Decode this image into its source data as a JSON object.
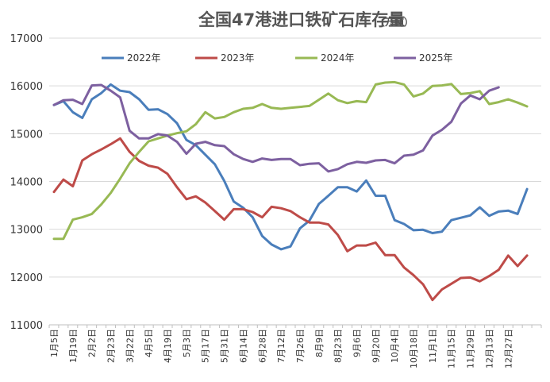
{
  "chart_data": {
    "type": "line",
    "title": "全国47港进口铁矿石库存量",
    "unit_label": "（万吨）",
    "ylim": [
      11000,
      17000
    ],
    "yticks": [
      11000,
      12000,
      13000,
      14000,
      15000,
      16000,
      17000
    ],
    "x_tick_labels": [
      "1月5日",
      "1月19日",
      "2月2日",
      "2月23日",
      "3月22日",
      "4月5日",
      "4月19日",
      "5月3日",
      "5月17日",
      "5月31日",
      "6月14日",
      "6月28日",
      "7月12日",
      "7月26日",
      "8月9日",
      "8月23日",
      "9月6日",
      "9月20日",
      "10月4日",
      "10月18日",
      "11月1日",
      "11月15日",
      "11月29日",
      "12月13日",
      "12月27日"
    ],
    "n_weeks": 52,
    "legend_position": "top",
    "series": [
      {
        "name": "2022年",
        "color": "#4a7ebb",
        "values": [
          15600,
          15680,
          15450,
          15330,
          15720,
          15850,
          16030,
          15900,
          15870,
          15720,
          15500,
          15510,
          15410,
          15220,
          14870,
          14760,
          14560,
          14360,
          14010,
          13580,
          13450,
          13250,
          12860,
          12680,
          12580,
          12640,
          13020,
          13180,
          13530,
          13700,
          13880,
          13880,
          13790,
          14020,
          13700,
          13700,
          13190,
          13110,
          12980,
          12990,
          12920,
          12950,
          13190,
          13240,
          13290,
          13460,
          13280,
          13370,
          13390,
          13320,
          13840
        ]
      },
      {
        "name": "2023年",
        "color": "#be4b48",
        "values": [
          13780,
          14040,
          13900,
          14440,
          14570,
          14670,
          14780,
          14900,
          14620,
          14430,
          14330,
          14290,
          14160,
          13880,
          13630,
          13690,
          13560,
          13380,
          13200,
          13420,
          13420,
          13360,
          13250,
          13470,
          13440,
          13380,
          13250,
          13140,
          13140,
          13100,
          12880,
          12540,
          12660,
          12660,
          12720,
          12460,
          12460,
          12200,
          12040,
          11850,
          11520,
          11740,
          11860,
          11980,
          11990,
          11910,
          12020,
          12150,
          12450,
          12230,
          12450
        ]
      },
      {
        "name": "2024年",
        "color": "#98b954",
        "values": [
          12800,
          12800,
          13200,
          13250,
          13320,
          13520,
          13760,
          14060,
          14380,
          14620,
          14840,
          14900,
          14960,
          15010,
          15050,
          15200,
          15450,
          15320,
          15350,
          15450,
          15520,
          15540,
          15620,
          15540,
          15520,
          15540,
          15560,
          15580,
          15710,
          15840,
          15700,
          15640,
          15680,
          15660,
          16030,
          16070,
          16080,
          16030,
          15780,
          15840,
          16000,
          16010,
          16040,
          15830,
          15850,
          15890,
          15620,
          15660,
          15720,
          15650,
          15570
        ]
      },
      {
        "name": "2025年",
        "color": "#7d60a0",
        "values": [
          15600,
          15700,
          15710,
          15620,
          16010,
          16020,
          15900,
          15760,
          15060,
          14900,
          14900,
          14990,
          14960,
          14830,
          14580,
          14790,
          14830,
          14760,
          14740,
          14570,
          14470,
          14410,
          14480,
          14450,
          14470,
          14470,
          14340,
          14370,
          14380,
          14210,
          14260,
          14360,
          14410,
          14390,
          14440,
          14450,
          14380,
          14540,
          14560,
          14650,
          14960,
          15080,
          15250,
          15630,
          15800,
          15720,
          15900,
          15970
        ]
      }
    ]
  }
}
